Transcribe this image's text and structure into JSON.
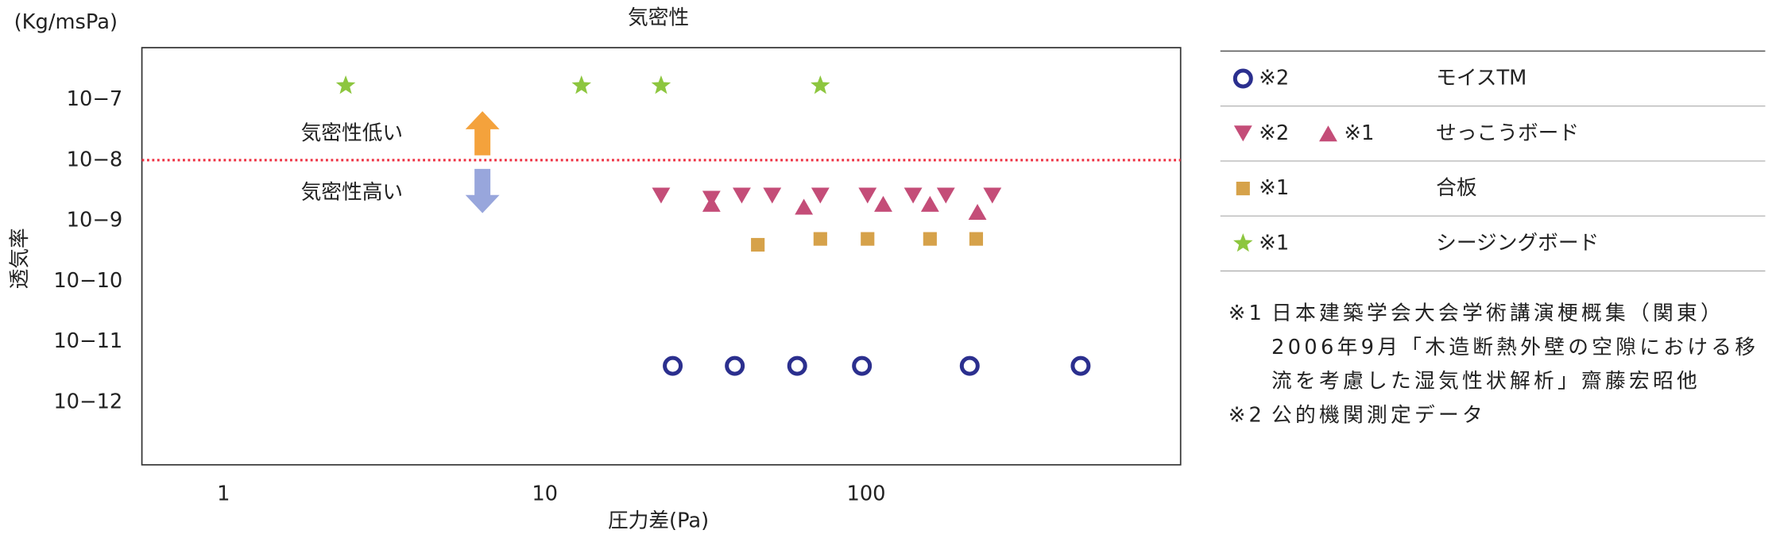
{
  "chart_data": {
    "type": "scatter",
    "title": "気密性",
    "y_unit": "(Kg/msPa)",
    "ylabel": "透気率",
    "xlabel": "圧力差(Pa)",
    "xscale": "log",
    "yscale": "log",
    "xlim": [
      0.557,
      952
    ],
    "ylim": [
      9.3e-14,
      7.2e-07
    ],
    "xticks": [
      1,
      10,
      100
    ],
    "yticks": [
      {
        "value": 1e-07,
        "label": "10−7"
      },
      {
        "value": 1e-08,
        "label": "10−8"
      },
      {
        "value": 1e-09,
        "label": "10−9"
      },
      {
        "value": 1e-10,
        "label": "10−10"
      },
      {
        "value": 1e-11,
        "label": "10−11"
      },
      {
        "value": 1e-12,
        "label": "10−12"
      }
    ],
    "reference_line": {
      "value": 1e-08,
      "color": "#ee3344"
    },
    "annotations": [
      "気密性低い",
      "気密性高い"
    ],
    "series": [
      {
        "name": "モイスTM",
        "note": "※2",
        "marker": "circle",
        "color": "#2b2f8e",
        "x": [
          25,
          39,
          61,
          97,
          210,
          465
        ],
        "values": [
          4e-12,
          4e-12,
          4e-12,
          4e-12,
          4e-12,
          4e-12
        ]
      },
      {
        "name": "せっこうボード",
        "note": "※2",
        "marker": "triangle-down",
        "color": "#c44d78",
        "x": [
          23,
          33,
          41,
          51,
          72,
          101,
          140,
          177,
          247
        ],
        "values": [
          2.6e-09,
          2.3e-09,
          2.6e-09,
          2.6e-09,
          2.6e-09,
          2.6e-09,
          2.6e-09,
          2.6e-09,
          2.6e-09
        ]
      },
      {
        "name": "せっこうボード",
        "note": "※1",
        "marker": "triangle-up",
        "color": "#c44d78",
        "x": [
          33,
          64,
          113,
          158,
          222
        ],
        "values": [
          1.9e-09,
          1.7e-09,
          1.9e-09,
          1.9e-09,
          1.4e-09
        ]
      },
      {
        "name": "合板",
        "note": "※1",
        "marker": "square",
        "color": "#d6a24a",
        "x": [
          46,
          72,
          101,
          158,
          220
        ],
        "values": [
          4e-10,
          5e-10,
          5e-10,
          5e-10,
          5e-10
        ]
      },
      {
        "name": "シージングボード",
        "note": "※1",
        "marker": "star",
        "color": "#8dc63f",
        "x": [
          2.4,
          13,
          23,
          72
        ],
        "values": [
          1.7e-07,
          1.7e-07,
          1.7e-07,
          1.7e-07
        ]
      }
    ],
    "notes": [
      {
        "mark": "※1",
        "text": "日本建築学会大会学術講演梗概集（関東）2006年9月「木造断熱外壁の空隙における移流を考慮した湿気性状解析」齋藤宏昭他"
      },
      {
        "mark": "※2",
        "text": "公的機関測定データ"
      }
    ]
  }
}
